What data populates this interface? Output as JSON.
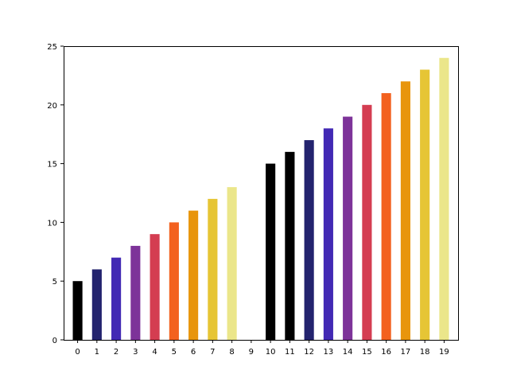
{
  "chart_data": {
    "type": "bar",
    "title": "",
    "xlabel": "",
    "ylabel": "",
    "categories": [
      "0",
      "1",
      "2",
      "3",
      "4",
      "5",
      "6",
      "7",
      "8",
      "9",
      "10",
      "11",
      "12",
      "13",
      "14",
      "15",
      "16",
      "17",
      "18",
      "19"
    ],
    "values": [
      5,
      6,
      7,
      8,
      9,
      10,
      11,
      12,
      13,
      null,
      15,
      16,
      17,
      18,
      19,
      20,
      21,
      22,
      23,
      24
    ],
    "colors": [
      "#000000",
      "#23236e",
      "#4229b4",
      "#7d3399",
      "#d43d51",
      "#f3611f",
      "#e8950c",
      "#e6c535",
      "#ebe68a",
      null,
      "#000000",
      "#000000",
      "#23236e",
      "#4229b4",
      "#7d3399",
      "#d43d51",
      "#f3611f",
      "#e8950c",
      "#e6c535",
      "#ebe68a"
    ],
    "ylim": [
      0,
      25
    ],
    "yticks": [
      0,
      5,
      10,
      15,
      20,
      25
    ],
    "grid": false
  }
}
